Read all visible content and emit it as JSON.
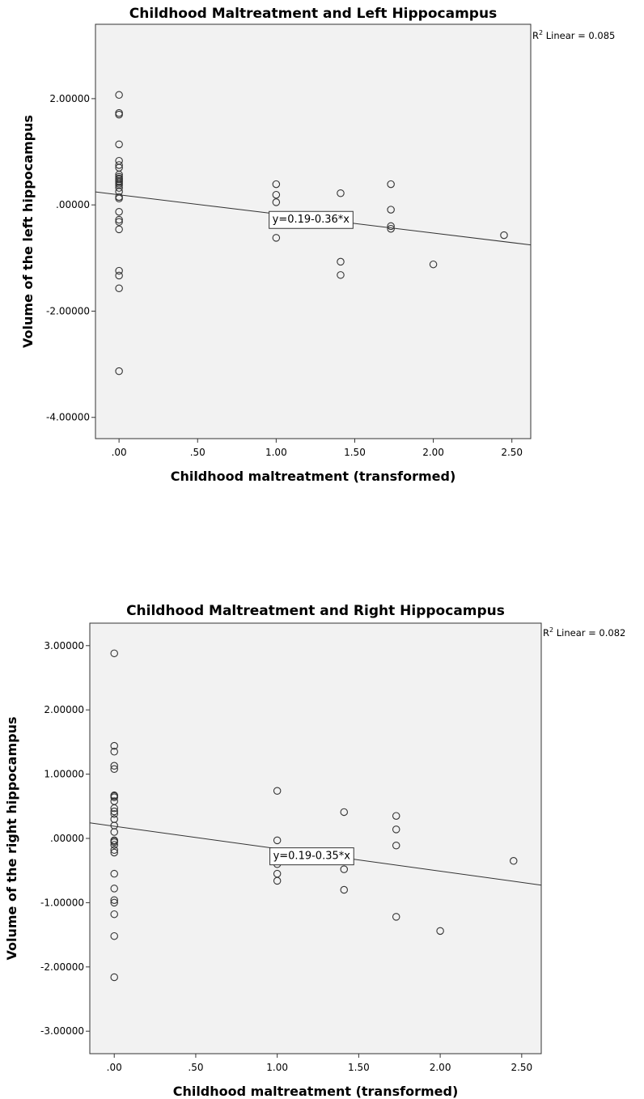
{
  "chart_data": [
    {
      "type": "scatter",
      "title": "Childhood Maltreatment and Left Hippocampus",
      "xlabel": "Childhood maltreatment (transformed)",
      "ylabel": "Volume of the left hippocampus",
      "xlim": [
        -0.15,
        2.62
      ],
      "ylim": [
        -4.4,
        3.4
      ],
      "x_ticks": [
        0,
        0.5,
        1.0,
        1.5,
        2.0,
        2.5
      ],
      "x_tick_labels": [
        ".00",
        ".50",
        "1.00",
        "1.50",
        "2.00",
        "2.50"
      ],
      "y_ticks": [
        2,
        0,
        -2,
        -4
      ],
      "y_tick_labels": [
        "2.00000",
        ".00000",
        "-2.00000",
        "-4.00000"
      ],
      "r2_label": "R",
      "r2_sup": "2",
      "r2_text": " Linear = 0.085",
      "fit": {
        "intercept": 0.19,
        "slope": -0.36
      },
      "equation": "y=0.19-0.36*x",
      "equation_at": [
        0.95,
        -0.26
      ],
      "points": {
        "x": [
          0,
          0,
          0,
          0,
          0,
          0,
          0,
          0,
          0,
          0,
          0,
          0,
          0,
          0,
          0,
          0,
          0,
          0,
          0,
          0,
          0,
          0,
          0,
          0,
          0,
          0,
          0,
          1,
          1,
          1,
          1,
          1.41,
          1.41,
          1.41,
          1.73,
          1.73,
          1.73,
          1.73,
          2.0,
          2.45
        ],
        "y": [
          2.07,
          1.73,
          1.7,
          1.14,
          0.83,
          0.75,
          0.7,
          0.57,
          0.53,
          0.5,
          0.48,
          0.43,
          0.4,
          0.32,
          0.25,
          0.15,
          0.12,
          -0.13,
          -0.28,
          -0.32,
          -0.46,
          -1.24,
          -1.33,
          -1.57,
          -3.13,
          0.45,
          0.37,
          0.39,
          0.19,
          0.05,
          -0.62,
          0.22,
          -1.07,
          -1.32,
          0.39,
          -0.09,
          -0.4,
          -0.45,
          -1.12,
          -0.57
        ]
      }
    },
    {
      "type": "scatter",
      "title": "Childhood Maltreatment and Right Hippocampus",
      "xlabel": "Childhood maltreatment (transformed)",
      "ylabel": "Volume of the right hippocampus",
      "xlim": [
        -0.15,
        2.62
      ],
      "ylim": [
        -3.35,
        3.35
      ],
      "x_ticks": [
        0,
        0.5,
        1.0,
        1.5,
        2.0,
        2.5
      ],
      "x_tick_labels": [
        ".00",
        ".50",
        "1.00",
        "1.50",
        "2.00",
        "2.50"
      ],
      "y_ticks": [
        3,
        2,
        1,
        0,
        -1,
        -2,
        -3
      ],
      "y_tick_labels": [
        "3.00000",
        "2.00000",
        "1.00000",
        ".00000",
        "-1.00000",
        "-2.00000",
        "-3.00000"
      ],
      "r2_label": "R",
      "r2_sup": "2",
      "r2_text": " Linear = 0.082",
      "fit": {
        "intercept": 0.19,
        "slope": -0.35
      },
      "equation": "y=0.19-0.35*x",
      "equation_at": [
        0.95,
        -0.26
      ],
      "points": {
        "x": [
          0,
          0,
          0,
          0,
          0,
          0,
          0,
          0,
          0,
          0,
          0,
          0,
          0,
          0,
          0,
          0,
          0,
          0,
          0,
          0,
          0,
          0,
          0,
          0,
          0,
          0,
          0,
          0,
          1,
          1,
          1,
          1,
          1,
          1.41,
          1.41,
          1.41,
          1.73,
          1.73,
          1.73,
          1.73,
          2.0,
          2.45
        ],
        "y": [
          2.88,
          1.44,
          1.35,
          1.13,
          1.08,
          0.67,
          0.64,
          0.47,
          0.42,
          0.38,
          0.3,
          0.2,
          0.1,
          -0.03,
          -0.06,
          -0.1,
          -0.18,
          -0.22,
          -0.55,
          -0.78,
          -0.96,
          -1.0,
          -1.18,
          -1.52,
          -2.16,
          0.66,
          0.58,
          -0.04,
          0.74,
          -0.03,
          -0.4,
          -0.55,
          -0.66,
          0.41,
          -0.48,
          -0.8,
          0.35,
          0.14,
          -0.11,
          -1.22,
          -1.44,
          -0.35
        ]
      }
    }
  ]
}
